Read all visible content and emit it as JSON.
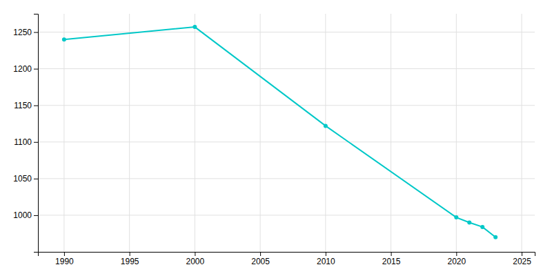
{
  "chart_data": {
    "type": "line",
    "x": [
      1990,
      2000,
      2010,
      2020,
      2021,
      2022,
      2023
    ],
    "values": [
      1240,
      1257,
      1122,
      997,
      990,
      984,
      970
    ],
    "color": "#00C8C8",
    "marker": "circle",
    "xlim": [
      1988,
      2026
    ],
    "ylim": [
      950,
      1275
    ],
    "xticks": [
      1990,
      1995,
      2000,
      2005,
      2010,
      2015,
      2020,
      2025
    ],
    "yticks": [
      1000,
      1050,
      1100,
      1150,
      1200,
      1250
    ],
    "grid": true
  }
}
